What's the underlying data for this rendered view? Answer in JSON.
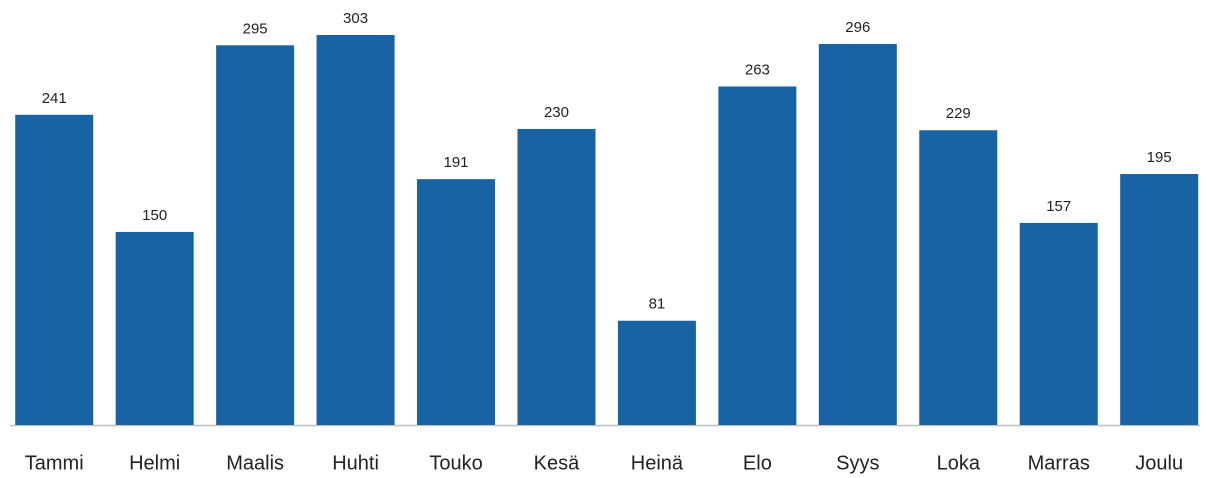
{
  "chart_data": {
    "type": "bar",
    "categories": [
      "Tammi",
      "Helmi",
      "Maalis",
      "Huhti",
      "Touko",
      "Kesä",
      "Heinä",
      "Elo",
      "Syys",
      "Loka",
      "Marras",
      "Joulu"
    ],
    "values": [
      241,
      150,
      295,
      303,
      191,
      230,
      81,
      263,
      296,
      229,
      157,
      195
    ],
    "color": "#1763a3"
  }
}
